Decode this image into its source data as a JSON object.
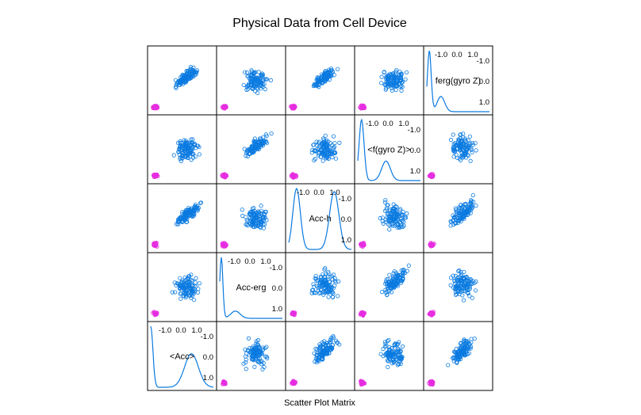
{
  "chart_data": {
    "type": "scatter",
    "title": "Physical Data from Cell Device",
    "xlabel": "Scatter Plot Matrix",
    "variables": [
      "<Acc>",
      "Acc-erg",
      "Acc-h",
      "<f(gyro Z)>",
      "ferg(gyro Z)"
    ],
    "groups": [
      {
        "name": "",
        "color": "#e62ee0"
      },
      {
        "name": "",
        "color": "#0a7ae0"
      }
    ],
    "axis_range": [
      -1,
      1
    ],
    "diagonal_ticks": [
      "-1.0",
      "-0.5",
      "0.0",
      "0.5",
      "1.0"
    ],
    "density_color": "#0a7ae0",
    "densities": {
      "<Acc>": [
        [
          -1,
          1.0,
          0.07
        ],
        [
          0.3,
          0.55,
          0.22
        ]
      ],
      "Acc-erg": [
        [
          -0.95,
          1.0,
          0.05
        ],
        [
          -0.5,
          0.12,
          0.15
        ]
      ],
      "Acc-h": [
        [
          -0.75,
          1.0,
          0.12
        ],
        [
          0.45,
          0.95,
          0.15
        ]
      ],
      "<f(gyro Z)>": [
        [
          -0.88,
          1.0,
          0.08
        ],
        [
          -0.1,
          0.32,
          0.14
        ]
      ],
      "ferg(gyro Z)": [
        [
          -0.92,
          1.0,
          0.06
        ],
        [
          -0.55,
          0.25,
          0.12
        ]
      ]
    }
  }
}
